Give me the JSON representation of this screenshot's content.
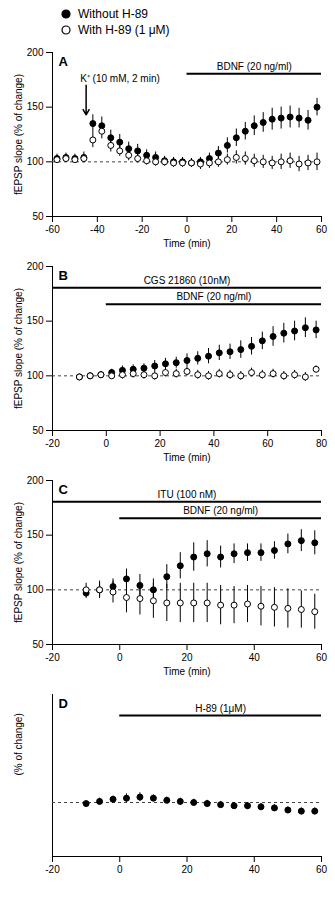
{
  "chart_data": [
    {
      "type": "scatter",
      "title": "A",
      "legend": "top",
      "x_label": "Time (min)",
      "y_label": "fEPSP slope (% of change)",
      "xlim": [
        -60,
        60
      ],
      "xticks": [
        -60,
        -40,
        -20,
        0,
        20,
        40,
        60
      ],
      "ylim": [
        50,
        200
      ],
      "yticks": [
        50,
        100,
        150,
        200
      ],
      "baseline": 100,
      "x": [
        -58,
        -54,
        -50,
        -46,
        -42,
        -38,
        -34,
        -30,
        -26,
        -22,
        -18,
        -14,
        -10,
        -6,
        -2,
        2,
        6,
        10,
        14,
        18,
        22,
        26,
        30,
        34,
        38,
        42,
        46,
        50,
        54,
        58
      ],
      "series": [
        {
          "name": "Without H-89",
          "color": "#000000",
          "marker": "circle",
          "values": [
            103,
            104,
            103,
            104,
            135,
            133,
            122,
            118,
            112,
            110,
            106,
            104,
            101,
            100,
            100,
            99,
            100,
            103,
            108,
            115,
            122,
            128,
            133,
            136,
            139,
            140,
            141,
            140,
            138,
            150
          ],
          "errors": [
            4,
            4,
            4,
            5,
            8,
            8,
            7,
            7,
            6,
            6,
            5,
            5,
            4,
            4,
            4,
            4,
            4,
            5,
            6,
            7,
            8,
            8,
            9,
            9,
            10,
            10,
            10,
            9,
            9,
            8
          ]
        },
        {
          "name": "With H-89 (1 μM)",
          "color": "#000000",
          "marker": "open_circle",
          "values": [
            102,
            103,
            102,
            103,
            120,
            128,
            115,
            110,
            106,
            103,
            101,
            100,
            100,
            99,
            99,
            99,
            98,
            99,
            100,
            102,
            104,
            103,
            101,
            100,
            99,
            100,
            101,
            98,
            99,
            100
          ],
          "errors": [
            3,
            3,
            3,
            3,
            7,
            7,
            6,
            5,
            5,
            4,
            4,
            4,
            4,
            4,
            4,
            4,
            5,
            5,
            5,
            5,
            6,
            6,
            6,
            6,
            6,
            7,
            7,
            7,
            7,
            8
          ]
        }
      ],
      "treatments": [
        {
          "label": "BDNF (20 ng/ml)",
          "start": 0,
          "end": 60
        }
      ],
      "annotations": [
        {
          "text": "K⁺ (10 mM, 2 min)",
          "x": -45
        }
      ]
    },
    {
      "type": "scatter",
      "title": "B",
      "x_label": "Time (min)",
      "y_label": "fEPSP slope (% of change)",
      "xlim": [
        -20,
        80
      ],
      "xticks": [
        -20,
        0,
        20,
        40,
        60,
        80
      ],
      "ylim": [
        50,
        200
      ],
      "yticks": [
        50,
        100,
        150,
        200
      ],
      "baseline": 100,
      "x": [
        -10,
        -6,
        -2,
        2,
        6,
        10,
        14,
        18,
        22,
        26,
        30,
        34,
        38,
        42,
        46,
        50,
        54,
        58,
        62,
        66,
        70,
        74,
        78
      ],
      "series": [
        {
          "name": "Without H-89",
          "color": "#000000",
          "marker": "circle",
          "values": [
            99,
            100,
            101,
            103,
            105,
            106,
            107,
            109,
            111,
            112,
            114,
            116,
            118,
            121,
            122,
            124,
            127,
            132,
            136,
            139,
            141,
            144,
            142
          ],
          "errors": [
            2,
            2,
            3,
            3,
            4,
            4,
            4,
            5,
            5,
            5,
            6,
            6,
            7,
            7,
            7,
            8,
            8,
            8,
            9,
            9,
            9,
            9,
            8
          ]
        },
        {
          "name": "With H-89 (1 μM)",
          "color": "#000000",
          "marker": "open_circle",
          "values": [
            99,
            100,
            101,
            100,
            101,
            102,
            101,
            100,
            103,
            102,
            104,
            101,
            100,
            102,
            101,
            100,
            103,
            101,
            102,
            100,
            101,
            99,
            106
          ],
          "errors": [
            2,
            3,
            3,
            3,
            4,
            4,
            4,
            4,
            4,
            4,
            4,
            4,
            4,
            4,
            4,
            4,
            4,
            4,
            4,
            4,
            4,
            4,
            3
          ]
        }
      ],
      "treatments": [
        {
          "label": "CGS 21860 (10nM)",
          "start": -20,
          "end": 80
        },
        {
          "label": "BDNF (20 ng/ml)",
          "start": 0,
          "end": 80
        }
      ]
    },
    {
      "type": "scatter",
      "title": "C",
      "x_label": "Time (min)",
      "y_label": "fEPSP slope (% of change)",
      "xlim": [
        -20,
        60
      ],
      "xticks": [
        -20,
        0,
        20,
        40,
        60
      ],
      "ylim": [
        50,
        200
      ],
      "yticks": [
        50,
        100,
        150,
        200
      ],
      "baseline": 100,
      "x": [
        -10,
        -6,
        -2,
        2,
        6,
        10,
        14,
        18,
        22,
        26,
        30,
        34,
        38,
        42,
        46,
        50,
        54,
        58
      ],
      "series": [
        {
          "name": "Without H-89",
          "color": "#000000",
          "marker": "circle",
          "values": [
            97,
            100,
            103,
            110,
            104,
            100,
            112,
            122,
            130,
            133,
            130,
            133,
            134,
            134,
            136,
            142,
            145,
            143
          ],
          "errors": [
            5,
            6,
            7,
            9,
            10,
            10,
            11,
            12,
            13,
            12,
            10,
            9,
            8,
            8,
            8,
            9,
            10,
            11
          ]
        },
        {
          "name": "With H-89 (1 μM)",
          "color": "#000000",
          "marker": "open_circle",
          "values": [
            100,
            100,
            98,
            93,
            92,
            90,
            88,
            88,
            88,
            88,
            86,
            86,
            87,
            85,
            84,
            83,
            82,
            80
          ],
          "errors": [
            6,
            8,
            10,
            14,
            15,
            16,
            17,
            18,
            18,
            18,
            18,
            17,
            17,
            18,
            18,
            18,
            17,
            16
          ]
        }
      ],
      "treatments": [
        {
          "label": "ITU (100 nM)",
          "start": -20,
          "end": 60
        },
        {
          "label": "BDNF (20 ng/ml)",
          "start": 0,
          "end": 60
        }
      ]
    },
    {
      "type": "scatter",
      "title": "D",
      "tick_labels": "x",
      "y_label": "(% of change)",
      "xlim": [
        -20,
        60
      ],
      "xticks": [
        -20,
        0,
        20,
        40,
        60
      ],
      "ylim": [
        50,
        200
      ],
      "baseline": 100,
      "x": [
        -10,
        -6,
        -2,
        2,
        6,
        10,
        14,
        18,
        22,
        26,
        30,
        34,
        38,
        42,
        46,
        50,
        54,
        58
      ],
      "series": [
        {
          "name": "Without H-89",
          "color": "#000000",
          "marker": "circle",
          "values": [
            99,
            101,
            103,
            104,
            105,
            104,
            102,
            101,
            100,
            99,
            98,
            97,
            97,
            96,
            95,
            93,
            92,
            92
          ],
          "errors": [
            2,
            3,
            3,
            4,
            4,
            3,
            3,
            3,
            3,
            3,
            3,
            3,
            3,
            3,
            3,
            3,
            3,
            3
          ]
        }
      ],
      "treatments": [
        {
          "label": "H-89 (1μM)",
          "start": 0,
          "end": 60
        }
      ]
    }
  ]
}
